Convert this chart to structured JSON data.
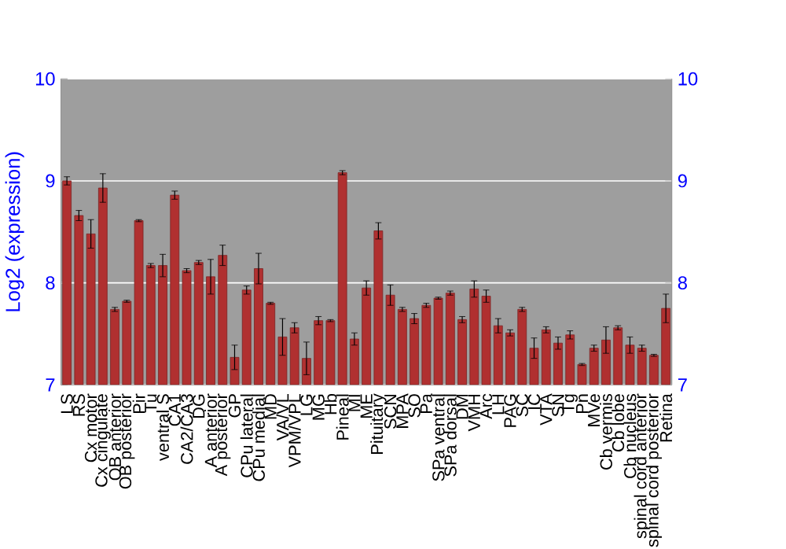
{
  "chart_data": {
    "type": "bar",
    "ylabel": "Log2 (expression)",
    "categories": [
      "LS",
      "RS",
      "Cx motor",
      "Cx cingulate",
      "OB anterior",
      "OB posterior",
      "Pir",
      "Tu",
      "ventral S",
      "CA1",
      "CA2/CA3",
      "DG",
      "A anterior",
      "A posterior",
      "GP",
      "CPu lateral",
      "CPu medial",
      "MD",
      "VA/VL",
      "VPM/VPL",
      "LG",
      "MG",
      "Hb",
      "Pineal",
      "MI",
      "ME",
      "Pituitary",
      "SCN",
      "MPA",
      "SO",
      "Pa",
      "SPa ventral",
      "SPa dorsal",
      "DM",
      "VMH",
      "Arc",
      "LH",
      "PAG",
      "SC",
      "IC",
      "VTA",
      "SN",
      "Tg",
      "Pn",
      "MVe",
      "Cb vermis",
      "Cb lobe",
      "Cb nucleus",
      "spinal cord anterior",
      "spinal cord posterior",
      "Retina"
    ],
    "values": [
      9.0,
      8.66,
      8.48,
      8.93,
      7.74,
      7.82,
      8.61,
      8.17,
      8.17,
      8.86,
      8.12,
      8.2,
      8.06,
      8.27,
      7.27,
      7.93,
      8.14,
      7.8,
      7.47,
      7.56,
      7.26,
      7.63,
      7.63,
      9.08,
      7.45,
      7.95,
      8.51,
      7.88,
      7.74,
      7.65,
      7.78,
      7.85,
      7.9,
      7.64,
      7.94,
      7.87,
      7.58,
      7.51,
      7.74,
      7.36,
      7.54,
      7.41,
      7.49,
      7.2,
      7.36,
      7.44,
      7.56,
      7.39,
      7.36,
      7.29,
      7.75
    ],
    "errors": [
      0.04,
      0.05,
      0.14,
      0.14,
      0.02,
      0.01,
      0.01,
      0.02,
      0.11,
      0.04,
      0.02,
      0.02,
      0.17,
      0.1,
      0.12,
      0.04,
      0.15,
      0.01,
      0.18,
      0.05,
      0.16,
      0.04,
      0.01,
      0.02,
      0.06,
      0.07,
      0.08,
      0.1,
      0.02,
      0.05,
      0.02,
      0.01,
      0.02,
      0.03,
      0.08,
      0.06,
      0.07,
      0.03,
      0.02,
      0.1,
      0.03,
      0.06,
      0.04,
      0.01,
      0.03,
      0.13,
      0.02,
      0.08,
      0.03,
      0.01,
      0.14
    ],
    "color": "#b03030",
    "ylim": [
      7,
      10
    ],
    "yticks": [
      7,
      8,
      9,
      10
    ],
    "y2lim": [
      7,
      10
    ],
    "y2ticks": [
      7,
      8,
      9,
      10
    ],
    "grid": "y"
  }
}
